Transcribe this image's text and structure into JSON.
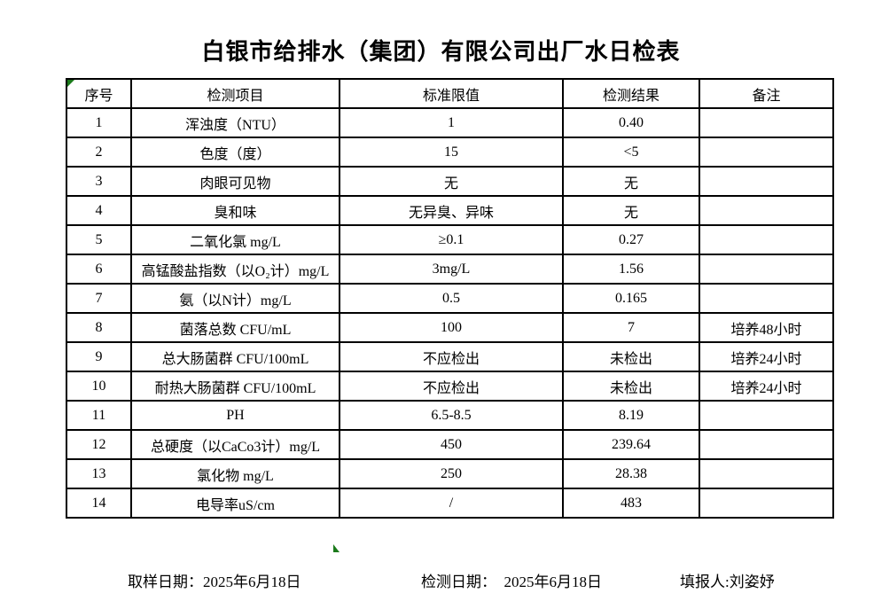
{
  "page": {
    "title": "白银市给排水（集团）有限公司出厂水日检表"
  },
  "table": {
    "headers": [
      "序号",
      "检测项目",
      "标准限值",
      "检测结果",
      "备注"
    ],
    "rows": [
      [
        "1",
        "浑浊度（NTU）",
        "1",
        "0.40",
        ""
      ],
      [
        "2",
        "色度（度）",
        "15",
        "<5",
        ""
      ],
      [
        "3",
        "肉眼可见物",
        "无",
        "无",
        ""
      ],
      [
        "4",
        "臭和味",
        "无异臭、异味",
        "无",
        ""
      ],
      [
        "5",
        "二氧化氯 mg/L",
        "≥0.1",
        "0.27",
        ""
      ],
      [
        "6",
        "高锰酸盐指数（以O₂计）mg/L",
        "3mg/L",
        "1.56",
        ""
      ],
      [
        "7",
        "氨（以N计）mg/L",
        "0.5",
        "0.165",
        ""
      ],
      [
        "8",
        "菌落总数 CFU/mL",
        "100",
        "7",
        "培养48小时"
      ],
      [
        "9",
        "总大肠菌群 CFU/100mL",
        "不应检出",
        "未检出",
        "培养24小时"
      ],
      [
        "10",
        "耐热大肠菌群 CFU/100mL",
        "不应检出",
        "未检出",
        "培养24小时"
      ],
      [
        "11",
        "PH",
        "6.5-8.5",
        "8.19",
        ""
      ],
      [
        "12",
        "总硬度（以CaCo3计）mg/L",
        "450",
        "239.64",
        ""
      ],
      [
        "13",
        "氯化物 mg/L",
        "250",
        "28.38",
        ""
      ],
      [
        "14",
        "电导率uS/cm",
        "/",
        "483",
        ""
      ]
    ]
  },
  "footer": {
    "sampling_date_label": "取样日期：",
    "sampling_date": "2025年6月18日",
    "test_date_label": "检测日期：  ",
    "test_date": "2025年6月18日",
    "reporter_label": "填报人:",
    "reporter": "刘姿妤"
  },
  "colors": {
    "marker_green": "#1b7a1b",
    "border": "#000000",
    "background": "#ffffff"
  }
}
